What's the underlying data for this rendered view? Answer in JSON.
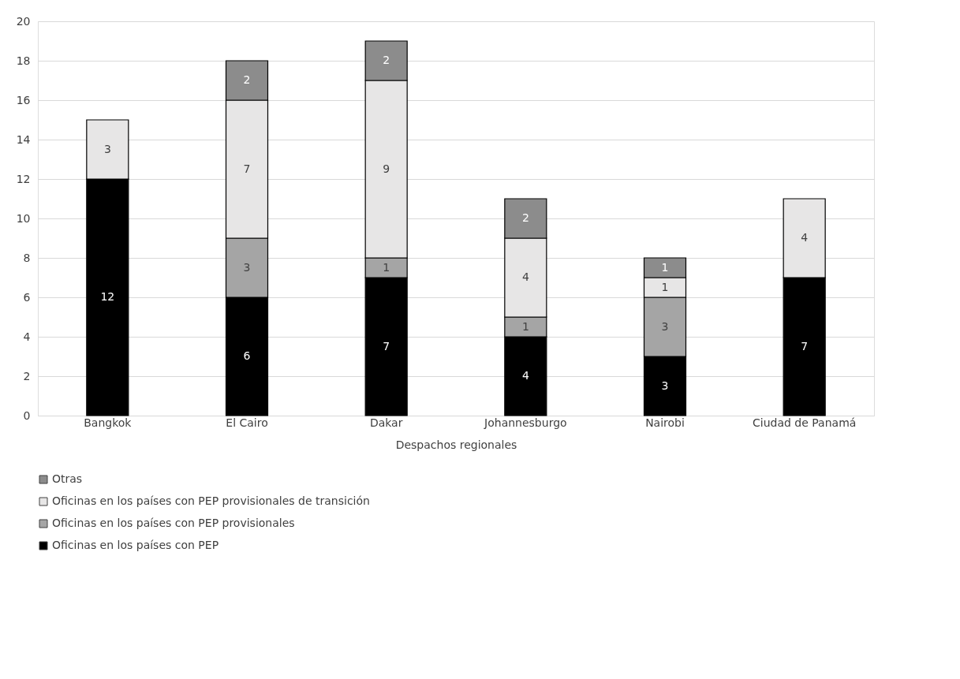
{
  "chart_data": {
    "type": "bar",
    "stacked": true,
    "xlabel": "Despachos regionales",
    "categories": [
      "Bangkok",
      "El Cairo",
      "Dakar",
      "Johannesburgo",
      "Nairobi",
      "Ciudad de Panamá"
    ],
    "series": [
      {
        "name": "Oficinas en los países con PEP",
        "color": "#000000",
        "values": [
          12,
          6,
          7,
          4,
          3,
          7
        ]
      },
      {
        "name": "Oficinas en los países con PEP provisionales",
        "color": "#a5a5a5",
        "values": [
          null,
          3,
          1,
          1,
          3,
          null
        ]
      },
      {
        "name": "Oficinas en los países con PEP provisionales de transición",
        "color": "#e7e6e6",
        "values": [
          3,
          7,
          9,
          4,
          1,
          4
        ]
      },
      {
        "name": "Otras",
        "color": "#8c8c8c",
        "values": [
          null,
          2,
          2,
          2,
          1,
          null
        ]
      }
    ],
    "ylim": [
      0,
      20
    ],
    "yticks": [
      0,
      2,
      4,
      6,
      8,
      10,
      12,
      14,
      16,
      18,
      20
    ],
    "grid": "y",
    "legend": "bottom",
    "data_labels": true
  }
}
